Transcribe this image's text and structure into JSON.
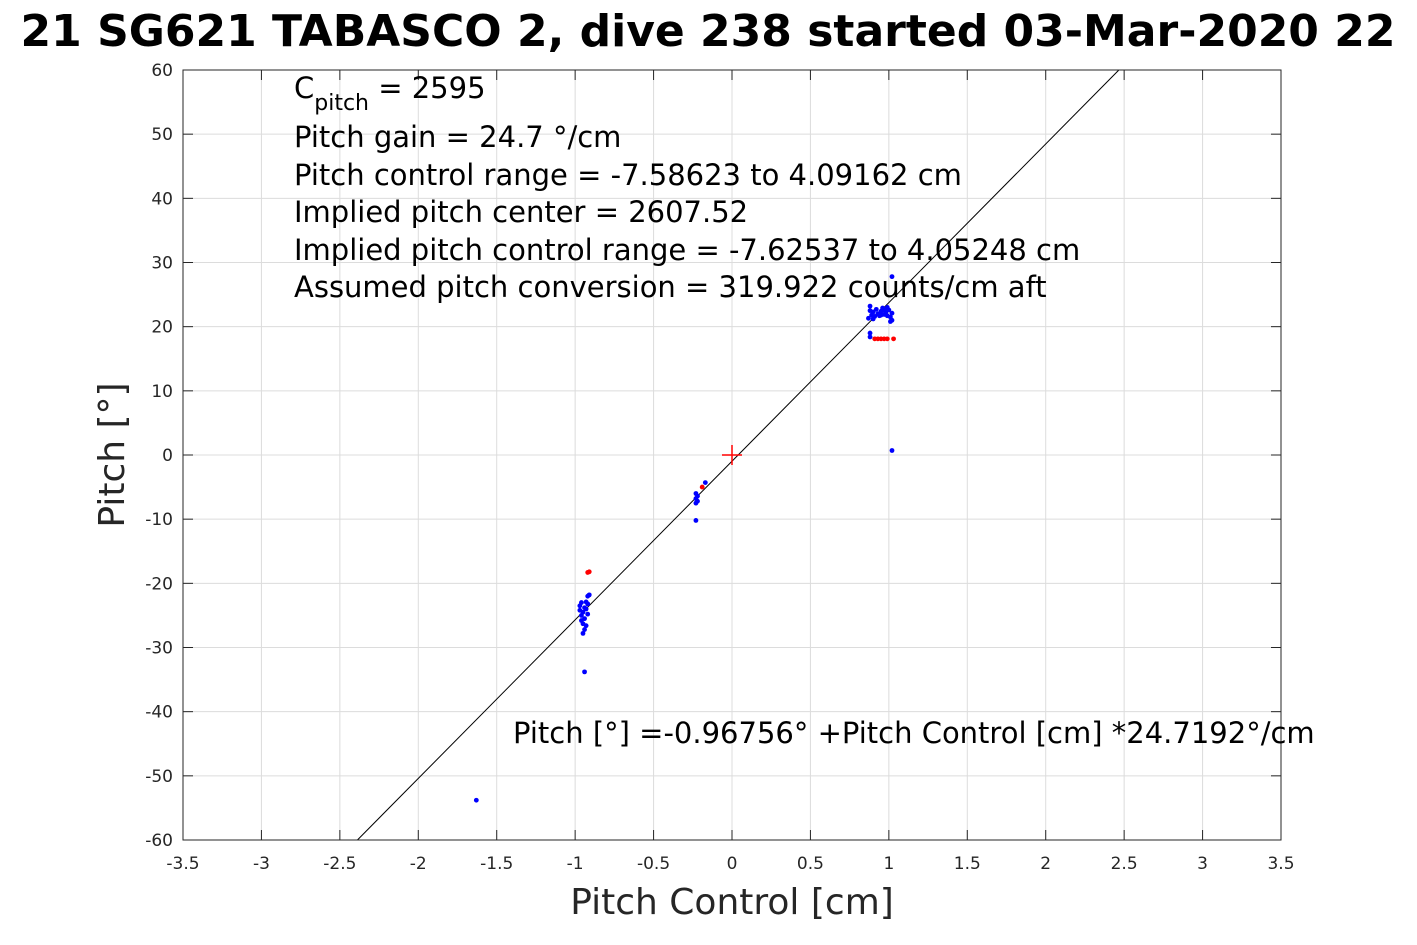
{
  "chart_data": {
    "type": "scatter",
    "title": "21 SG621 TABASCO 2, dive 238 started 03-Mar-2020 22",
    "xlabel": "Pitch Control [cm]",
    "ylabel": "Pitch [°]",
    "xlim": [
      -3.5,
      3.5
    ],
    "ylim": [
      -60,
      60
    ],
    "xticks": [
      -3.5,
      -3,
      -2.5,
      -2,
      -1.5,
      -1,
      -0.5,
      0,
      0.5,
      1,
      1.5,
      2,
      2.5,
      3,
      3.5
    ],
    "xtick_labels": [
      "-3.5",
      "-3",
      "-2.5",
      "-2",
      "-1.5",
      "-1",
      "-0.5",
      "0",
      "0.5",
      "1",
      "1.5",
      "2",
      "2.5",
      "3",
      "3.5"
    ],
    "yticks": [
      60,
      50,
      40,
      30,
      20,
      10,
      0,
      -10,
      -20,
      -30,
      -40,
      -50,
      -60
    ],
    "ytick_labels": [
      "60",
      "50",
      "40",
      "30",
      "20",
      "10",
      "0",
      "-10",
      "-20",
      "-30",
      "-40",
      "-50",
      "-60"
    ],
    "grid": true,
    "annotations": {
      "cpitch_base": "C",
      "cpitch_sub": "pitch",
      "cpitch_value": " = 2595",
      "gain": "Pitch gain = 24.7 °/cm",
      "control_range": "Pitch control range = -7.58623 to 4.09162 cm",
      "implied_center": "Implied pitch center = 2607.52",
      "implied_range": "Implied pitch control range = -7.62537 to 4.05248 cm",
      "assumed_conversion": "Assumed pitch conversion = 319.922 counts/cm aft",
      "fit_equation": "Pitch [°] =-0.96756° +Pitch Control [cm] *24.7192°/cm"
    },
    "fit_line": {
      "intercept": -0.96756,
      "slope": 24.7192
    },
    "center_marker": {
      "x": 0,
      "y": 0,
      "color": "#ff0000"
    },
    "series": [
      {
        "color": "#0000ff",
        "points": [
          [
            0.88,
            22.5
          ],
          [
            0.89,
            21.8
          ],
          [
            0.9,
            22.3
          ],
          [
            0.91,
            21.6
          ],
          [
            0.92,
            22.7
          ],
          [
            0.93,
            22.0
          ],
          [
            0.94,
            21.7
          ],
          [
            0.95,
            22.4
          ],
          [
            0.96,
            22.9
          ],
          [
            0.97,
            21.9
          ],
          [
            0.98,
            22.2
          ],
          [
            0.99,
            23.0
          ],
          [
            1.0,
            22.6
          ],
          [
            1.01,
            21.5
          ],
          [
            1.02,
            22.1
          ],
          [
            0.87,
            21.3
          ],
          [
            0.88,
            23.2
          ],
          [
            0.9,
            21.2
          ],
          [
            0.95,
            21.8
          ],
          [
            0.97,
            22.6
          ],
          [
            0.99,
            21.7
          ],
          [
            1.01,
            20.8
          ],
          [
            1.02,
            21.0
          ],
          [
            0.88,
            19.0
          ],
          [
            0.88,
            18.4
          ],
          [
            1.02,
            27.8
          ],
          [
            1.02,
            0.7
          ],
          [
            -0.97,
            -23.5
          ],
          [
            -0.97,
            -24.2
          ],
          [
            -0.96,
            -25.0
          ],
          [
            -0.96,
            -25.8
          ],
          [
            -0.95,
            -24.5
          ],
          [
            -0.95,
            -26.3
          ],
          [
            -0.94,
            -23.8
          ],
          [
            -0.94,
            -25.5
          ],
          [
            -0.94,
            -27.2
          ],
          [
            -0.93,
            -24.0
          ],
          [
            -0.93,
            -26.6
          ],
          [
            -0.93,
            -22.9
          ],
          [
            -0.92,
            -24.8
          ],
          [
            -0.92,
            -23.2
          ],
          [
            -0.92,
            -22.0
          ],
          [
            -0.91,
            -21.8
          ],
          [
            -0.96,
            -23.0
          ],
          [
            -0.95,
            -27.8
          ],
          [
            -0.94,
            -33.8
          ],
          [
            -0.23,
            -6.0
          ],
          [
            -0.23,
            -6.8
          ],
          [
            -0.23,
            -7.5
          ],
          [
            -0.22,
            -6.4
          ],
          [
            -0.22,
            -7.2
          ],
          [
            -0.23,
            -10.2
          ],
          [
            -0.17,
            -4.3
          ],
          [
            -1.63,
            -53.8
          ]
        ]
      },
      {
        "color": "#ff0000",
        "points": [
          [
            0.91,
            18.1
          ],
          [
            0.93,
            18.1
          ],
          [
            0.95,
            18.1
          ],
          [
            0.97,
            18.1
          ],
          [
            0.99,
            18.1
          ],
          [
            1.03,
            18.1
          ],
          [
            -0.92,
            -18.3
          ],
          [
            -0.91,
            -18.2
          ],
          [
            -0.19,
            -5.0
          ]
        ]
      }
    ]
  }
}
